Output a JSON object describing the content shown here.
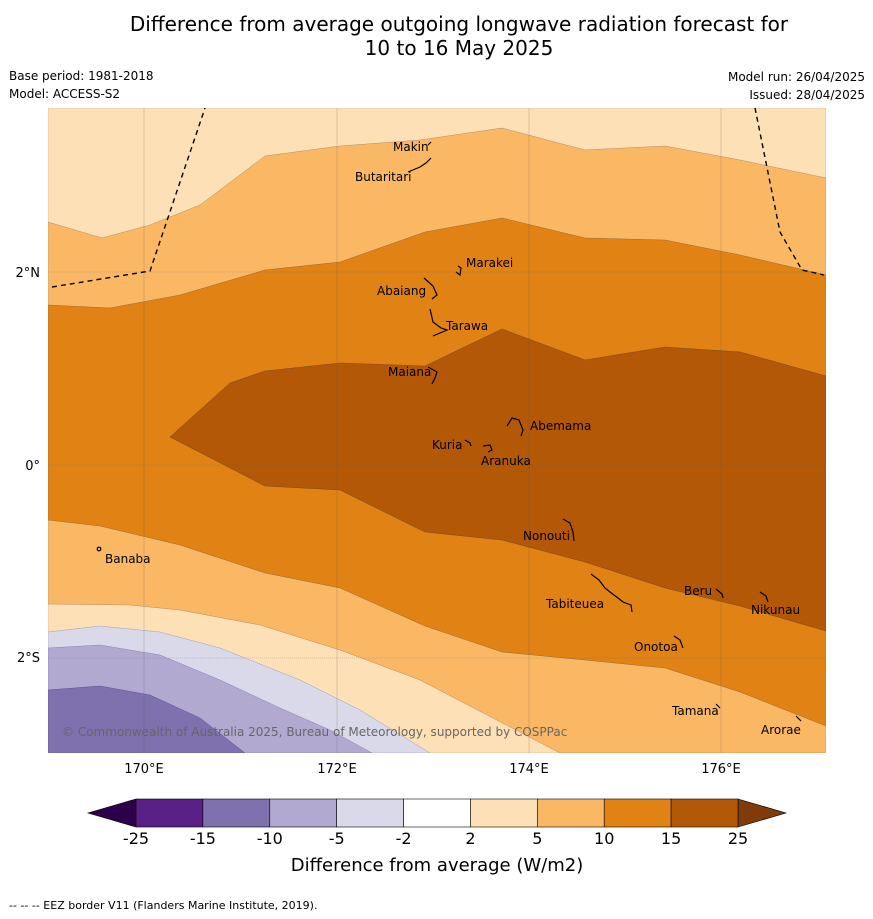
{
  "title_line1": "Difference from average outgoing longwave radiation forecast for",
  "title_line2": "10 to 16 May 2025",
  "base_period": "Base period: 1981-2018",
  "model": "Model: ACCESS-S2",
  "model_run": "Model run: 26/04/2025",
  "issued": "Issued: 28/04/2025",
  "copyright": "© Commonwealth of Australia 2025, Bureau of Meteorology, supported by COSPPac",
  "footnote": "--  --  -- EEZ border V11 (Flanders Marine Institute, 2019).",
  "colorbar": {
    "label": "Difference from average (W/m2)",
    "ticks": [
      "-25",
      "-15",
      "-10",
      "-5",
      "-2",
      "2",
      "5",
      "10",
      "15",
      "25"
    ],
    "colors": [
      "#5a1f87",
      "#7e71ad",
      "#b2a9d1",
      "#dad9ea",
      "#ffffff",
      "#fee0b6",
      "#fbb864",
      "#e08214",
      "#b35806"
    ],
    "extend_low_color": "#2d004b",
    "extend_high_color": "#7f3b08"
  },
  "axes": {
    "x_ticks": [
      "170°E",
      "172°E",
      "174°E",
      "176°E"
    ],
    "y_ticks": [
      "2°N",
      "0°",
      "2°S"
    ]
  },
  "places": [
    {
      "name": "Makin"
    },
    {
      "name": "Butaritari"
    },
    {
      "name": "Marakei"
    },
    {
      "name": "Abaiang"
    },
    {
      "name": "Tarawa"
    },
    {
      "name": "Maiana"
    },
    {
      "name": "Abemama"
    },
    {
      "name": "Kuria"
    },
    {
      "name": "Aranuka"
    },
    {
      "name": "Nonouti"
    },
    {
      "name": "Banaba"
    },
    {
      "name": "Beru"
    },
    {
      "name": "Tabiteuea"
    },
    {
      "name": "Nikunau"
    },
    {
      "name": "Onotoa"
    },
    {
      "name": "Tamana"
    },
    {
      "name": "Arorae"
    }
  ],
  "colors": {
    "c_m10": "#b2a9d1",
    "c_m5": "#dad9ea",
    "c_m15": "#7e71ad",
    "c_2": "#fee0b6",
    "c_5": "#fbb864",
    "c_10": "#e08214",
    "c_15": "#b35806"
  }
}
